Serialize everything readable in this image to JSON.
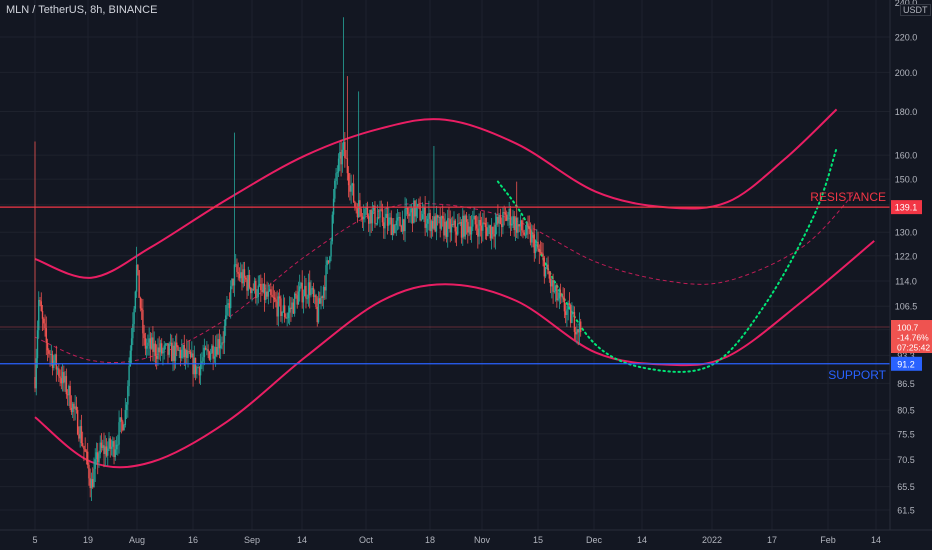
{
  "header": {
    "symbol": "MLN / TetherUS, 8h, BINANCE",
    "unit_badge": "USDT",
    "top_tick": "240.0"
  },
  "colors": {
    "background": "#131722",
    "grid": "#1e222d",
    "up": "#26a69a",
    "down": "#ef5350",
    "resistance": "#f23645",
    "support": "#2962ff",
    "channel": "#e91e63",
    "projection_green": "#00e676",
    "axis_text": "#b2b5be"
  },
  "chart_data": {
    "type": "candlestick",
    "title": "MLN / TetherUS, 8h, BINANCE",
    "y_scale": "log",
    "ylim": [
      58.5,
      243
    ],
    "y_ticks": [
      "220.0",
      "200.0",
      "180.0",
      "160.0",
      "150.0",
      "140.0",
      "130.0",
      "122.0",
      "114.0",
      "106.5",
      "100.0",
      "93.3",
      "86.5",
      "80.5",
      "75.5",
      "70.5",
      "65.5",
      "61.5"
    ],
    "x_ticks": [
      "5",
      "19",
      "Aug",
      "16",
      "Sep",
      "14",
      "Oct",
      "18",
      "Nov",
      "15",
      "Dec",
      "14",
      "2022",
      "17",
      "Feb",
      "14"
    ],
    "x_start_date": "2021-07-05",
    "x_end_date": "2022-02-14",
    "last_candle_date": "2021-11-27",
    "price_path": [
      [
        "2021-07-05",
        88
      ],
      [
        "2021-07-06",
        108
      ],
      [
        "2021-07-08",
        96
      ],
      [
        "2021-07-11",
        90
      ],
      [
        "2021-07-14",
        84
      ],
      [
        "2021-07-17",
        76
      ],
      [
        "2021-07-20",
        66
      ],
      [
        "2021-07-22",
        72
      ],
      [
        "2021-07-26",
        73
      ],
      [
        "2021-07-29",
        80
      ],
      [
        "2021-08-01",
        118
      ],
      [
        "2021-08-03",
        96
      ],
      [
        "2021-08-08",
        94
      ],
      [
        "2021-08-13",
        94
      ],
      [
        "2021-08-17",
        90
      ],
      [
        "2021-08-20",
        94
      ],
      [
        "2021-08-24",
        98
      ],
      [
        "2021-08-27",
        117
      ],
      [
        "2021-09-01",
        112
      ],
      [
        "2021-09-06",
        108
      ],
      [
        "2021-09-10",
        104
      ],
      [
        "2021-09-13",
        110
      ],
      [
        "2021-09-16",
        112
      ],
      [
        "2021-09-18",
        104
      ],
      [
        "2021-09-21",
        120
      ],
      [
        "2021-09-23",
        152
      ],
      [
        "2021-09-25",
        162
      ],
      [
        "2021-09-28",
        140
      ],
      [
        "2021-10-03",
        136
      ],
      [
        "2021-10-09",
        132
      ],
      [
        "2021-10-14",
        138
      ],
      [
        "2021-10-19",
        133
      ],
      [
        "2021-10-24",
        131
      ],
      [
        "2021-10-29",
        133
      ],
      [
        "2021-11-03",
        131
      ],
      [
        "2021-11-08",
        136
      ],
      [
        "2021-11-11",
        131
      ],
      [
        "2021-11-14",
        128
      ],
      [
        "2021-11-17",
        120
      ],
      [
        "2021-11-20",
        110
      ],
      [
        "2021-11-24",
        104
      ],
      [
        "2021-11-27",
        100
      ]
    ],
    "spikes": [
      {
        "date": "2021-07-05",
        "high": 166
      },
      {
        "date": "2021-07-20",
        "low": 63
      },
      {
        "date": "2021-08-01",
        "high": 125
      },
      {
        "date": "2021-08-27",
        "high": 170
      },
      {
        "date": "2021-09-25",
        "high": 232
      },
      {
        "date": "2021-09-26",
        "high": 198
      },
      {
        "date": "2021-09-29",
        "high": 190
      },
      {
        "date": "2021-10-19",
        "high": 164
      },
      {
        "date": "2021-11-10",
        "high": 149
      }
    ],
    "horizontal_lines": [
      {
        "name": "RESISTANCE",
        "value": 139.1,
        "label": "139.1"
      },
      {
        "name": "SUPPORT",
        "value": 91.2,
        "label": "91.2"
      },
      {
        "name": "current",
        "value": 100.7,
        "label": "100.7"
      }
    ],
    "price_label": {
      "value": "100.7",
      "change": "-14.76%",
      "countdown": "07:25:42"
    },
    "annotations": [
      {
        "text": "RESISTANCE",
        "color": "#f23645"
      },
      {
        "text": "SUPPORT",
        "color": "#2962ff"
      }
    ],
    "channel_upper": [
      [
        "2021-07-05",
        121
      ],
      [
        "2021-07-20",
        115
      ],
      [
        "2021-08-05",
        125
      ],
      [
        "2021-08-25",
        142
      ],
      [
        "2021-09-15",
        160
      ],
      [
        "2021-10-05",
        172
      ],
      [
        "2021-10-22",
        176
      ],
      [
        "2021-11-10",
        165
      ],
      [
        "2021-12-01",
        145
      ],
      [
        "2021-12-20",
        139
      ],
      [
        "2022-01-05",
        141
      ],
      [
        "2022-01-20",
        158
      ],
      [
        "2022-02-03",
        181
      ]
    ],
    "channel_lower": [
      [
        "2021-07-05",
        79
      ],
      [
        "2021-07-20",
        70
      ],
      [
        "2021-08-05",
        70
      ],
      [
        "2021-08-25",
        78
      ],
      [
        "2021-09-15",
        93
      ],
      [
        "2021-10-05",
        108
      ],
      [
        "2021-10-22",
        113
      ],
      [
        "2021-11-10",
        108
      ],
      [
        "2021-12-01",
        94
      ],
      [
        "2021-12-20",
        91
      ],
      [
        "2022-01-05",
        93
      ],
      [
        "2022-01-25",
        108
      ],
      [
        "2022-02-13",
        127
      ]
    ],
    "channel_mid": [
      [
        "2021-07-05",
        98
      ],
      [
        "2021-07-20",
        92
      ],
      [
        "2021-08-05",
        93
      ],
      [
        "2021-08-25",
        103
      ],
      [
        "2021-09-15",
        122
      ],
      [
        "2021-10-05",
        138
      ],
      [
        "2021-10-22",
        140
      ],
      [
        "2021-11-10",
        134
      ],
      [
        "2021-12-01",
        120
      ],
      [
        "2021-12-20",
        114
      ],
      [
        "2022-01-05",
        114
      ],
      [
        "2022-01-25",
        125
      ],
      [
        "2022-02-08",
        145
      ]
    ],
    "projection_dotted": [
      [
        "2021-11-05",
        149
      ],
      [
        "2021-11-12",
        135
      ],
      [
        "2021-11-20",
        114
      ],
      [
        "2021-12-01",
        96
      ],
      [
        "2021-12-15",
        90
      ],
      [
        "2022-01-01",
        91
      ],
      [
        "2022-01-15",
        107
      ],
      [
        "2022-01-28",
        136
      ],
      [
        "2022-02-03",
        163
      ]
    ]
  }
}
